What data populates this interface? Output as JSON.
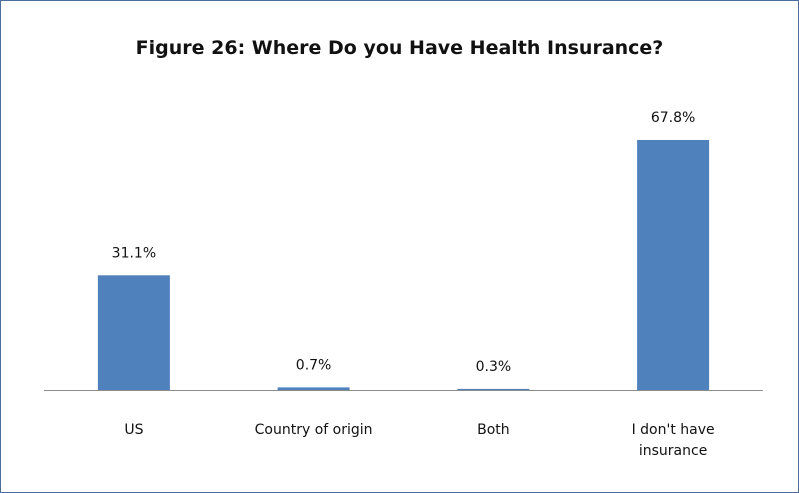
{
  "chart_data": {
    "type": "bar",
    "title": "Figure 26: Where Do you Have Health Insurance?",
    "categories": [
      [
        "US"
      ],
      [
        "Country of origin"
      ],
      [
        "Both"
      ],
      [
        "I don't have",
        "insurance"
      ]
    ],
    "values": [
      31.1,
      0.7,
      0.3,
      67.8
    ],
    "data_labels": [
      "31.1%",
      "0.7%",
      "0.3%",
      "67.8%"
    ],
    "unit": "%",
    "xlabel": "",
    "ylabel": "",
    "ylim": [
      0,
      75
    ],
    "grid": false,
    "legend": "none",
    "bar_color": "#4f81bd",
    "border_color": "#4a6f9c"
  }
}
